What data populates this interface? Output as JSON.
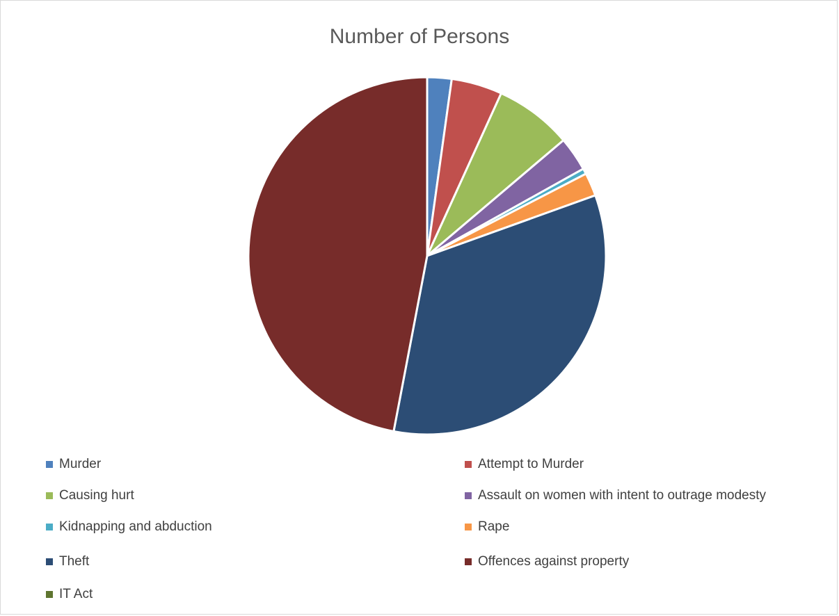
{
  "chart_data": {
    "type": "pie",
    "title": "Number of Persons",
    "categories": [
      "Murder",
      "Attempt to Murder",
      "Causing hurt",
      "Assault on women with intent to outrage modesty",
      "Kidnapping and abduction",
      "Rape",
      "Theft",
      "Offences against property",
      "IT Act"
    ],
    "values": [
      2.2,
      4.6,
      7.0,
      3.1,
      0.5,
      2.1,
      33.5,
      47.0,
      0.0
    ],
    "colors": [
      "#4f81bd",
      "#c0504d",
      "#9bbb59",
      "#8064a2",
      "#4bacc6",
      "#f79646",
      "#2c4d75",
      "#772c2a",
      "#5f7530"
    ],
    "legend_position": "bottom"
  }
}
